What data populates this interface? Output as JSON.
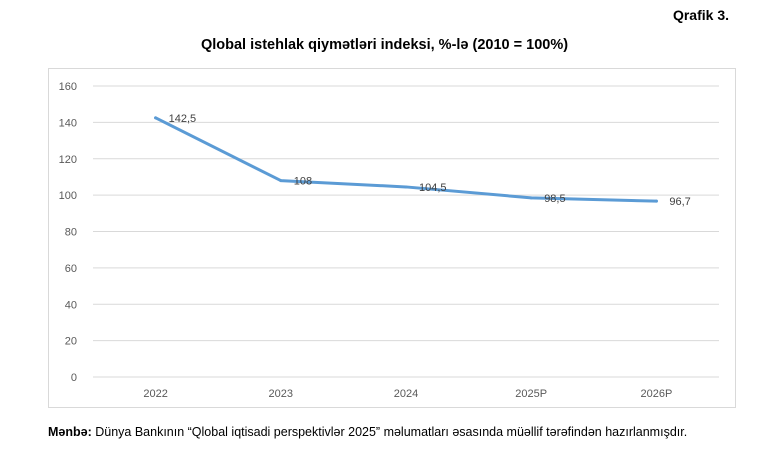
{
  "figure_label": "Qrafik 3.",
  "source": {
    "label": "Mənbə:",
    "text": " Dünya Bankının “Qlobal iqtisadi perspektivlər 2025” məlumatları əsasında müəllif tərəfindən hazırlanmışdır."
  },
  "chart_data": {
    "type": "line",
    "title": "Qlobal istehlak qiymətləri indeksi, %-lə (2010 = 100%)",
    "xlabel": "",
    "ylabel": "",
    "categories": [
      "2022",
      "2023",
      "2024",
      "2025P",
      "2026P"
    ],
    "series": [
      {
        "values": [
          142.5,
          108,
          104.5,
          98.5,
          96.7
        ],
        "labels": [
          "142,5",
          "108",
          "104,5",
          "98,5",
          "96,7"
        ],
        "color": "#5b9bd5"
      }
    ],
    "ylim": [
      0,
      160
    ],
    "yticks": [
      0,
      20,
      40,
      60,
      80,
      100,
      120,
      140,
      160
    ],
    "grid": true,
    "legend": "none",
    "gridline_color": "#d9d9d9",
    "tick_label_color": "#595959"
  }
}
